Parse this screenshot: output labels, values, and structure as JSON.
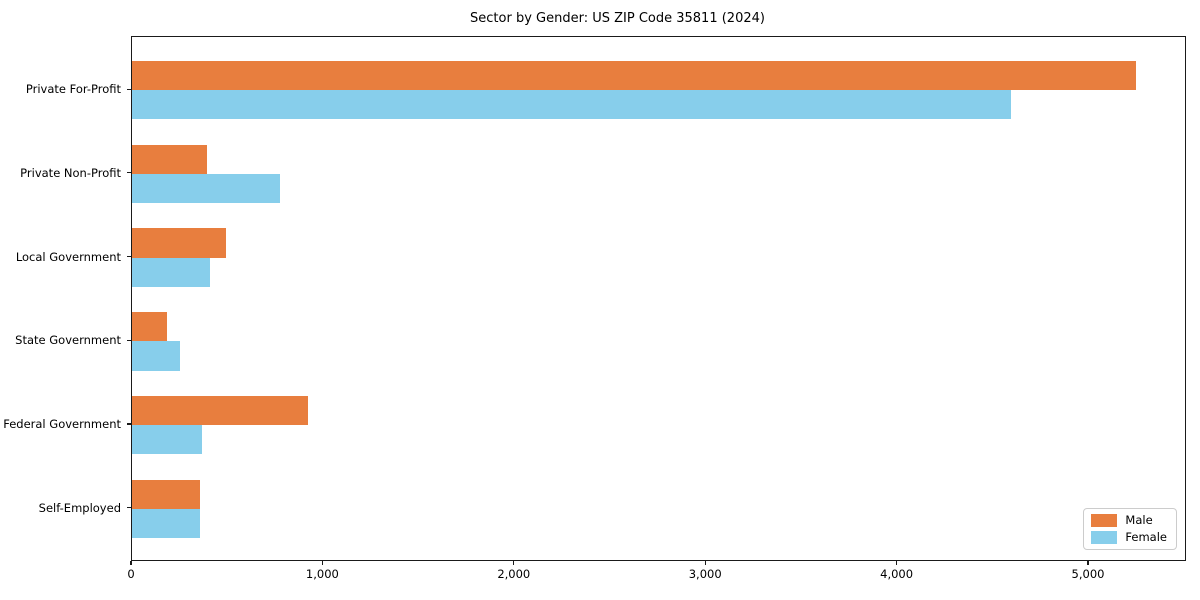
{
  "title": "Sector by Gender: US ZIP Code 35811 (2024)",
  "chart_data": {
    "type": "bar",
    "orientation": "horizontal",
    "title": "Sector by Gender: US ZIP Code 35811 (2024)",
    "categories": [
      "Private For-Profit",
      "Private Non-Profit",
      "Local Government",
      "State Government",
      "Federal Government",
      "Self-Employed"
    ],
    "series": [
      {
        "name": "Male",
        "color": "#E87E3E",
        "values": [
          5245,
          390,
          490,
          185,
          920,
          355
        ]
      },
      {
        "name": "Female",
        "color": "#87CEEB",
        "values": [
          4595,
          775,
          410,
          250,
          365,
          355
        ]
      }
    ],
    "xlabel": "",
    "ylabel": "",
    "xlim": [
      0,
      5512
    ],
    "xticks": [
      0,
      1000,
      2000,
      3000,
      4000,
      5000
    ],
    "xtick_labels": [
      "0",
      "1,000",
      "2,000",
      "3,000",
      "4,000",
      "5,000"
    ],
    "ylim_units": [
      -0.635,
      5.635
    ],
    "bar_height_units": 0.35,
    "grid": false,
    "legend_position": "lower right",
    "spine_color": "#1a1a1a",
    "background_color": "#ffffff"
  }
}
